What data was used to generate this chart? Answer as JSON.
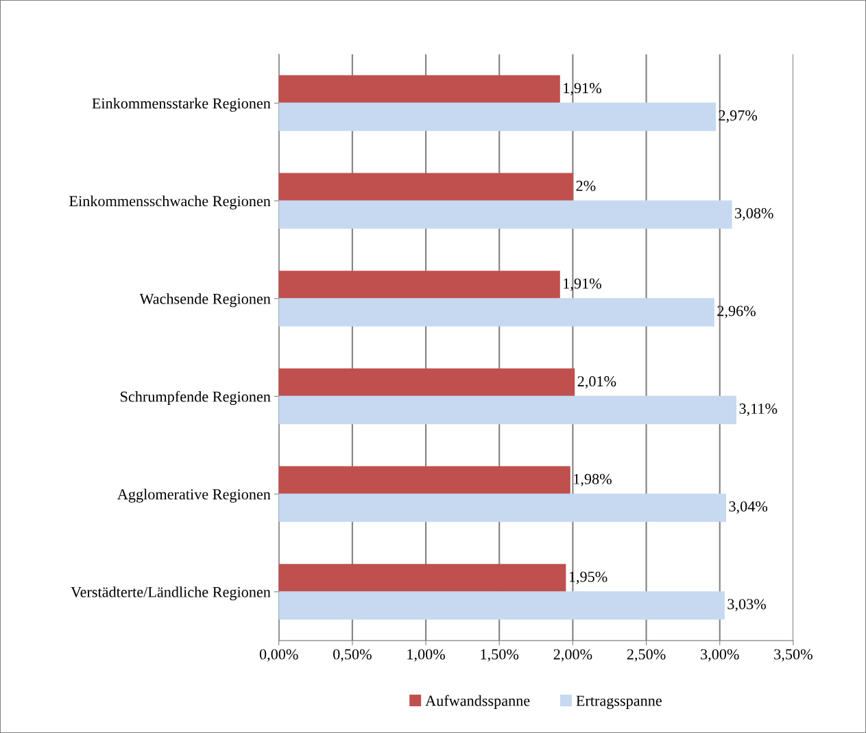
{
  "chart_data": {
    "type": "bar",
    "orientation": "horizontal",
    "categories": [
      "Einkommensstarke Regionen",
      "Einkommensschwache Regionen",
      "Wachsende Regionen",
      "Schrumpfende Regionen",
      "Agglomerative Regionen",
      "Verstädterte/Ländliche Regionen"
    ],
    "series": [
      {
        "name": "Aufwandsspanne",
        "color": "#c0504d",
        "values": [
          1.91,
          2,
          1.91,
          2.01,
          1.98,
          1.95
        ],
        "value_labels": [
          "1,91%",
          "2%",
          "1,91%",
          "2,01%",
          "1,98%",
          "1,95%"
        ]
      },
      {
        "name": "Ertragsspanne",
        "color": "#c6d9f1",
        "values": [
          2.97,
          3.08,
          2.96,
          3.11,
          3.04,
          3.03
        ],
        "value_labels": [
          "2,97%",
          "3,08%",
          "2,96%",
          "3,11%",
          "3,04%",
          "3,03%"
        ]
      }
    ],
    "xlim": [
      0,
      3.5
    ],
    "xticks": [
      {
        "value": 0,
        "label": "0,00%"
      },
      {
        "value": 0.5,
        "label": "0,50%"
      },
      {
        "value": 1,
        "label": "1,00%"
      },
      {
        "value": 1.5,
        "label": "1,50%"
      },
      {
        "value": 2,
        "label": "2,00%"
      },
      {
        "value": 2.5,
        "label": "2,50%"
      },
      {
        "value": 3,
        "label": "3,00%"
      },
      {
        "value": 3.5,
        "label": "3,50%"
      }
    ],
    "grid": "x",
    "legend": "bottom"
  }
}
